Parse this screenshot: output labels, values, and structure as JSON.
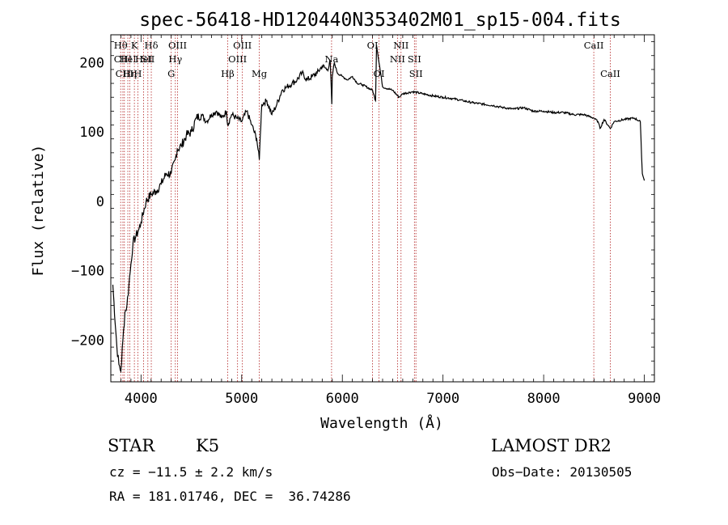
{
  "chart_data": {
    "type": "line",
    "title": "spec-56418-HD120440N353402M01_sp15-004.fits",
    "xlabel": "Wavelength (Å)",
    "ylabel": "Flux (relative)",
    "xlim": [
      3700,
      9100
    ],
    "ylim": [
      -260,
      240
    ],
    "xticks": [
      4000,
      5000,
      6000,
      7000,
      8000,
      9000
    ],
    "yticks": [
      -200,
      -100,
      0,
      100,
      200
    ],
    "grid": false,
    "series": [
      {
        "x": [
          3720,
          3760,
          3780,
          3800,
          3820,
          3840,
          3860,
          3880,
          3900,
          3920,
          3950,
          3980,
          4000,
          4050,
          4100,
          4150,
          4200,
          4250,
          4300,
          4340,
          4360,
          4400,
          4450,
          4500,
          4550,
          4600,
          4650,
          4700,
          4750,
          4800,
          4850,
          4860,
          4900,
          4950,
          5000,
          5050,
          5100,
          5150,
          5175,
          5185,
          5200,
          5250,
          5300,
          5350,
          5400,
          5450,
          5500,
          5550,
          5600,
          5650,
          5700,
          5750,
          5800,
          5850,
          5880,
          5895,
          5900,
          5920,
          5950,
          6000,
          6050,
          6100,
          6150,
          6200,
          6300,
          6330,
          6340,
          6400,
          6500,
          6563,
          6600,
          6700,
          6800,
          6900,
          7000,
          7100,
          7200,
          7300,
          7400,
          7500,
          7600,
          7700,
          7800,
          7900,
          8000,
          8100,
          8200,
          8300,
          8400,
          8498,
          8540,
          8560,
          8600,
          8662,
          8700,
          8800,
          8900,
          8960,
          8980,
          9000
        ],
        "y": [
          -120,
          -210,
          -235,
          -245,
          -200,
          -160,
          -150,
          -120,
          -90,
          -60,
          -50,
          -40,
          -30,
          0,
          10,
          15,
          25,
          40,
          40,
          60,
          75,
          80,
          95,
          100,
          120,
          125,
          115,
          125,
          130,
          120,
          130,
          110,
          125,
          120,
          115,
          130,
          110,
          90,
          60,
          95,
          140,
          145,
          125,
          140,
          160,
          165,
          170,
          175,
          185,
          175,
          180,
          185,
          195,
          190,
          200,
          140,
          180,
          200,
          185,
          180,
          175,
          180,
          170,
          168,
          160,
          145,
          225,
          165,
          160,
          150,
          155,
          158,
          155,
          152,
          150,
          148,
          145,
          142,
          140,
          138,
          135,
          133,
          135,
          130,
          130,
          128,
          128,
          125,
          125,
          120,
          115,
          105,
          118,
          105,
          115,
          118,
          120,
          115,
          40,
          30
        ]
      }
    ],
    "lines": [
      {
        "x": 3798,
        "label": "Hθ",
        "row": 0
      },
      {
        "x": 3820,
        "label": "CIII",
        "row": 1
      },
      {
        "x": 3835,
        "label": "CIII",
        "row": 2
      },
      {
        "x": 3869,
        "label": "HeI",
        "row": 1
      },
      {
        "x": 3889,
        "label": "Hη",
        "row": 2
      },
      {
        "x": 3934,
        "label": "K",
        "row": 0
      },
      {
        "x": 3968,
        "label": "H",
        "row": 2
      },
      {
        "x": 4026,
        "label": "HeI",
        "row": 1
      },
      {
        "x": 4068,
        "label": "SII",
        "row": 1
      },
      {
        "x": 4102,
        "label": "Hδ",
        "row": 0
      },
      {
        "x": 4300,
        "label": "G",
        "row": 2
      },
      {
        "x": 4341,
        "label": "Hγ",
        "row": 1
      },
      {
        "x": 4363,
        "label": "OIII",
        "row": 0
      },
      {
        "x": 4861,
        "label": "Hβ",
        "row": 2
      },
      {
        "x": 4959,
        "label": "OIII",
        "row": 1
      },
      {
        "x": 5007,
        "label": "OIII",
        "row": 0
      },
      {
        "x": 5175,
        "label": "Mg",
        "row": 2
      },
      {
        "x": 5893,
        "label": "Na",
        "row": 1
      },
      {
        "x": 6300,
        "label": "OI",
        "row": 0
      },
      {
        "x": 6364,
        "label": "OI",
        "row": 2
      },
      {
        "x": 6548,
        "label": "NII",
        "row": 1
      },
      {
        "x": 6583,
        "label": "NII",
        "row": 0
      },
      {
        "x": 6716,
        "label": "SII",
        "row": 1
      },
      {
        "x": 6731,
        "label": "SII",
        "row": 2
      },
      {
        "x": 8498,
        "label": "CaII",
        "row": 0
      },
      {
        "x": 8662,
        "label": "CaII",
        "row": 2
      }
    ]
  },
  "info": {
    "object_class": "STAR",
    "subclass": "K5",
    "survey": "LAMOST DR2",
    "redshift": "cz = −11.5 ± 2.2 km/s",
    "obs_date": "Obs−Date: 20130505",
    "coords": "RA = 181.01746, DEC =  36.74286"
  }
}
